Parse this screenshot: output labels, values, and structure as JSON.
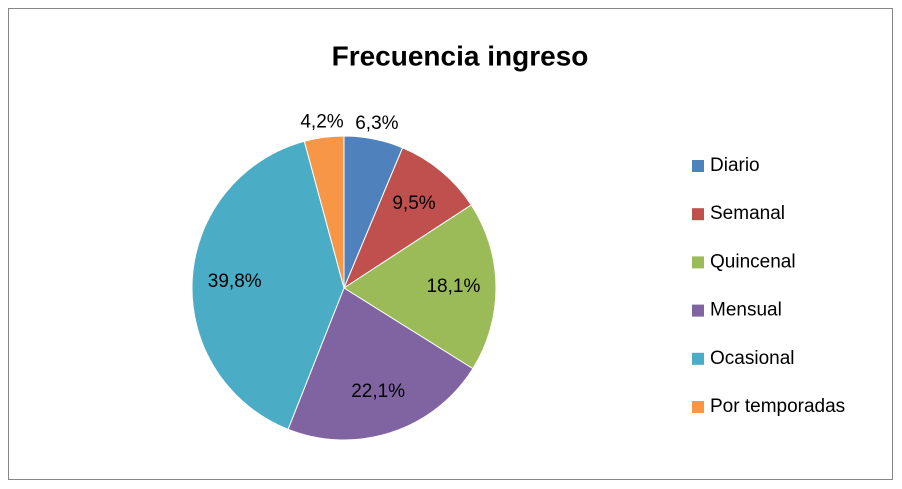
{
  "chart_data": {
    "type": "pie",
    "title": "Frecuencia ingreso",
    "categories": [
      "Diario",
      "Semanal",
      "Quincenal",
      "Mensual",
      "Ocasional",
      "Por temporadas"
    ],
    "values": [
      6.3,
      9.5,
      18.1,
      22.1,
      39.8,
      4.2
    ],
    "value_labels": [
      "6,3%",
      "9,5%",
      "18,1%",
      "22,1%",
      "39,8%",
      "4,2%"
    ],
    "colors": [
      "#4f81bd",
      "#c0504d",
      "#9bbb59",
      "#8064a2",
      "#4bacc6",
      "#f79646"
    ],
    "legend": "right"
  }
}
